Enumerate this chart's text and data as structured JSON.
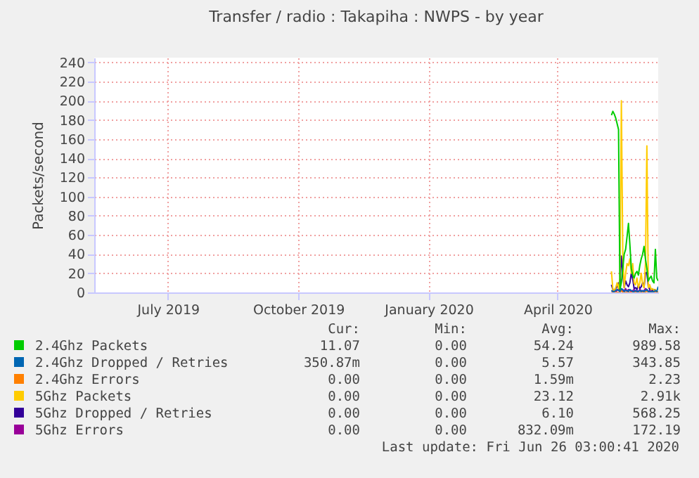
{
  "chart_data": {
    "type": "line",
    "title": "Transfer / radio : Takapiha : NWPS - by year",
    "ylabel": "Packets/second",
    "x": [
      "2020-05-24",
      "2020-05-25",
      "2020-05-26",
      "2020-05-27",
      "2020-05-28",
      "2020-05-29",
      "2020-05-30",
      "2020-05-31",
      "2020-06-01",
      "2020-06-02",
      "2020-06-03",
      "2020-06-04",
      "2020-06-05",
      "2020-06-06",
      "2020-06-07",
      "2020-06-08",
      "2020-06-09",
      "2020-06-10",
      "2020-06-11",
      "2020-06-12",
      "2020-06-13",
      "2020-06-14",
      "2020-06-15",
      "2020-06-16",
      "2020-06-17",
      "2020-06-18",
      "2020-06-19",
      "2020-06-20",
      "2020-06-21",
      "2020-06-22",
      "2020-06-23",
      "2020-06-24",
      "2020-06-25",
      "2020-06-26"
    ],
    "series": [
      {
        "name": "2.4Ghz Packets",
        "color": "#00cc00",
        "values": [
          185,
          189,
          186,
          182,
          176,
          170,
          3,
          10,
          25,
          40,
          45,
          58,
          72,
          50,
          25,
          18,
          15,
          20,
          22,
          18,
          28,
          35,
          40,
          48,
          35,
          25,
          12,
          15,
          17,
          12,
          10,
          45,
          15,
          12
        ]
      },
      {
        "name": "2.4Ghz Dropped / Retries",
        "color": "#0066b3",
        "values": [
          2,
          1,
          1,
          2,
          3,
          2,
          1,
          4,
          3,
          1,
          2,
          2,
          1,
          3,
          2,
          1,
          1,
          2,
          1,
          1,
          2,
          1,
          2,
          1,
          2,
          3,
          1,
          1,
          1,
          1,
          1,
          2,
          1,
          6
        ]
      },
      {
        "name": "2.4Ghz Errors",
        "color": "#ff8000",
        "values": [
          0,
          0,
          0,
          0,
          0,
          0,
          0,
          2,
          0,
          0,
          0,
          0,
          0,
          0,
          0,
          0,
          0,
          0,
          0,
          0,
          0,
          0,
          0,
          0,
          0,
          2,
          0,
          0,
          0,
          0,
          0,
          0,
          0,
          0
        ]
      },
      {
        "name": "5Ghz Packets",
        "color": "#ffcc00",
        "values": [
          22,
          3,
          2,
          5,
          10,
          4,
          15,
          200,
          40,
          5,
          20,
          30,
          28,
          35,
          20,
          30,
          10,
          8,
          15,
          5,
          10,
          20,
          8,
          5,
          30,
          153,
          5,
          8,
          3,
          4,
          2,
          3,
          1,
          0
        ]
      },
      {
        "name": "5Ghz Dropped / Retries",
        "color": "#330099",
        "values": [
          8,
          3,
          2,
          4,
          6,
          10,
          8,
          38,
          20,
          5,
          12,
          8,
          6,
          10,
          20,
          14,
          4,
          5,
          3,
          8,
          4,
          6,
          10,
          5,
          20,
          21,
          6,
          3,
          4,
          2,
          3,
          2,
          1,
          0
        ]
      },
      {
        "name": "5Ghz Errors",
        "color": "#990099",
        "values": [
          2,
          1,
          3,
          1,
          2,
          4,
          2,
          3,
          1,
          2,
          4,
          1,
          3,
          2,
          1,
          2,
          3,
          1,
          2,
          1,
          3,
          2,
          1,
          2,
          4,
          3,
          1,
          2,
          1,
          2,
          1,
          1,
          null,
          null
        ]
      }
    ],
    "xlim": [
      "2019-05-25",
      "2020-06-26"
    ],
    "xticks": [
      {
        "value": "2019-07-16",
        "label": "July 2019"
      },
      {
        "value": "2019-10-16",
        "label": "October 2019"
      },
      {
        "value": "2020-01-16",
        "label": "January 2020"
      },
      {
        "value": "2020-04-16",
        "label": "April 2020"
      }
    ],
    "ylim": [
      0,
      245
    ],
    "yticks": [
      0,
      20,
      40,
      60,
      80,
      100,
      120,
      140,
      160,
      180,
      200,
      220,
      240
    ],
    "grid": true,
    "legend": "bottom",
    "marker": "none",
    "line_style": "solid",
    "annotations": [
      "Cur:",
      "Min:",
      "Avg:",
      "Max:",
      "11.07",
      "0.00",
      "54.24",
      "989.58",
      "350.87m",
      "0.00",
      "5.57",
      "343.85",
      "0.00",
      "0.00",
      "1.59m",
      "2.23",
      "0.00",
      "0.00",
      "23.12",
      "2.91k",
      "0.00",
      "0.00",
      "6.10",
      "568.25",
      "0.00",
      "0.00",
      "832.09m",
      "172.19",
      "Last update: Fri Jun 26 03:00:41 2020"
    ]
  }
}
